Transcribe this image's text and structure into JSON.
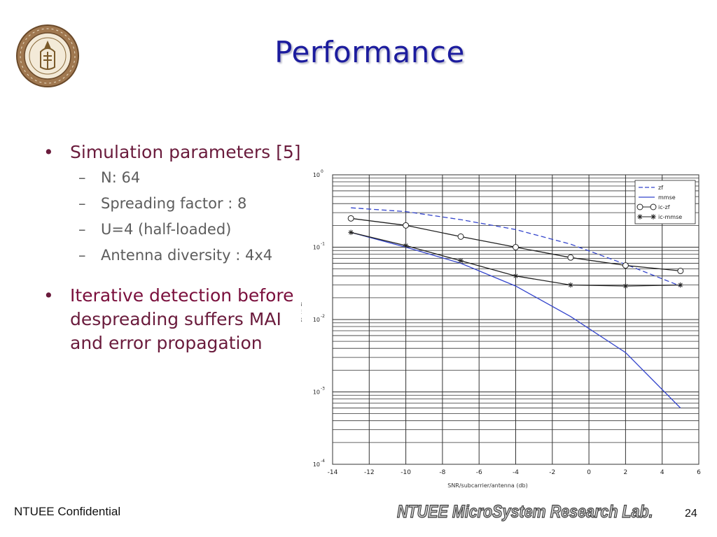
{
  "slide": {
    "title": "Performance",
    "bullets": [
      {
        "text": "Simulation parameters [5]",
        "sub": [
          "N: 64",
          "Spreading factor : 8",
          "U=4 (half-loaded)",
          "Antenna diversity : 4x4"
        ]
      },
      {
        "text_part1": "Iterative detection before",
        "text_part2": "despreading suffers MAI and error propagation"
      }
    ],
    "footer_left": "NTUEE Confidential",
    "footer_lab": "NTUEE MicroSystem Research Lab.",
    "page_number": "24"
  },
  "colors": {
    "title": "#1c1c9e",
    "bullet": "#6a1b3c",
    "sub": "#5d5d5d",
    "zf": "#3344cc",
    "mmse": "#3344cc",
    "ic": "#222222"
  },
  "chart_data": {
    "type": "line",
    "xlabel": "SNR/subcarrier/antenna (db)",
    "ylabel": "BER",
    "xlim": [
      -14,
      6
    ],
    "ylim": [
      0.0001,
      1
    ],
    "yscale": "log",
    "grid": true,
    "legend_position": "top-right",
    "x_ticks": [
      "-14",
      "-12",
      "-10",
      "-8",
      "-6",
      "-4",
      "-2",
      "0",
      "2",
      "4",
      "6"
    ],
    "y_ticks": [
      {
        "base": "10",
        "exp": "0"
      },
      {
        "base": "10",
        "exp": "-1"
      },
      {
        "base": "10",
        "exp": "-2"
      },
      {
        "base": "10",
        "exp": "-3"
      },
      {
        "base": "10",
        "exp": "-4"
      }
    ],
    "series": [
      {
        "name": "zf",
        "style": "dashed",
        "marker": "none",
        "x": [
          -13,
          -10,
          -7,
          -4,
          -1,
          2,
          5
        ],
        "y": [
          0.35,
          0.31,
          0.24,
          0.175,
          0.11,
          0.058,
          0.029
        ]
      },
      {
        "name": "mmse",
        "style": "solid",
        "marker": "none",
        "x": [
          -13,
          -10,
          -7,
          -4,
          -1,
          2,
          5
        ],
        "y": [
          0.16,
          0.1,
          0.06,
          0.029,
          0.011,
          0.0035,
          0.0006
        ]
      },
      {
        "name": "ic-zf",
        "style": "solid",
        "marker": "circle",
        "x": [
          -13,
          -10,
          -7,
          -4,
          -1,
          2,
          5
        ],
        "y": [
          0.25,
          0.2,
          0.14,
          0.1,
          0.072,
          0.056,
          0.047
        ]
      },
      {
        "name": "ic-mmse",
        "style": "solid",
        "marker": "star",
        "x": [
          -13,
          -10,
          -7,
          -4,
          -1,
          2,
          5
        ],
        "y": [
          0.16,
          0.105,
          0.065,
          0.04,
          0.03,
          0.029,
          0.03
        ]
      }
    ]
  }
}
